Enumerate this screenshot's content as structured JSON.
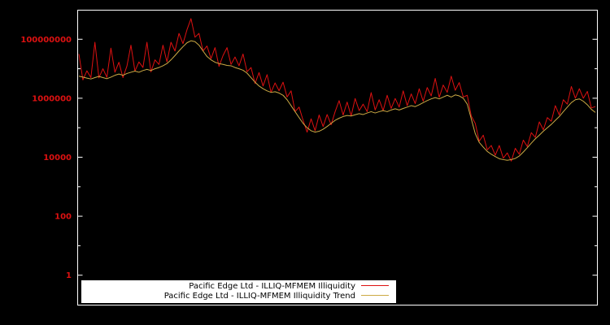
{
  "chart_data": {
    "type": "line",
    "title": "",
    "xlabel": "",
    "ylabel": "",
    "grid": false,
    "background": "#000000",
    "border_color": "#ffffff",
    "x_count": 130,
    "yaxis": {
      "scale": "log",
      "min": 0.1,
      "max": 1000000000.0,
      "ticks": [
        1,
        100,
        10000,
        1000000,
        100000000
      ],
      "tick_labels": [
        "1",
        "100",
        "10000",
        "1000000",
        "100000000"
      ],
      "minor_ticks": [
        10,
        1000,
        100000,
        10000000
      ],
      "tick_color": "#dd1111"
    },
    "legend": {
      "position": "bottom-center",
      "background": "#ffffff"
    },
    "series": [
      {
        "name": "Pacific Edge Ltd - ILLIQ-MFMEM Illiquidity",
        "color": "#dd1111",
        "values": [
          31600000.0,
          4200000.0,
          8500000.0,
          5000000.0,
          79000000.0,
          4900000.0,
          10000000.0,
          5100000.0,
          50000000.0,
          7600000.0,
          16600000.0,
          5000000.0,
          12300000.0,
          63000000.0,
          8300000.0,
          17000000.0,
          11000000.0,
          79000000.0,
          7800000.0,
          20000000.0,
          14000000.0,
          63000000.0,
          17000000.0,
          79000000.0,
          40000000.0,
          158000000.0,
          71000000.0,
          210000000.0,
          500000000.0,
          117000000.0,
          158000000.0,
          40000000.0,
          59000000.0,
          22000000.0,
          52000000.0,
          12000000.0,
          28000000.0,
          52000000.0,
          14000000.0,
          25000000.0,
          12600000.0,
          31600000.0,
          7900000.0,
          11000000.0,
          3160000.0,
          7400000.0,
          2600000.0,
          6300000.0,
          1580000.0,
          3300000.0,
          1800000.0,
          3500000.0,
          1100000.0,
          1780000.0,
          350000.0,
          500000.0,
          178000.0,
          71000.0,
          200000.0,
          79000.0,
          270000.0,
          110000.0,
          280000.0,
          126000.0,
          350000.0,
          830000.0,
          270000.0,
          740000.0,
          250000.0,
          980000.0,
          380000.0,
          630000.0,
          350000.0,
          1550000.0,
          400000.0,
          890000.0,
          380000.0,
          1260000.0,
          450000.0,
          980000.0,
          500000.0,
          1780000.0,
          560000.0,
          1400000.0,
          660000.0,
          2100000.0,
          790000.0,
          2300000.0,
          1200000.0,
          4700000.0,
          1070000.0,
          2800000.0,
          1580000.0,
          5600000.0,
          1860000.0,
          3400000.0,
          1100000.0,
          1260000.0,
          250000.0,
          140000.0,
          35000.0,
          56000.0,
          17800.0,
          25000.0,
          11700.0,
          25000.0,
          9300.0,
          14000.0,
          7400.0,
          20000.0,
          12600.0,
          38000.0,
          23000.0,
          68000.0,
          47000.0,
          158000.0,
          85000.0,
          220000.0,
          166000.0,
          560000.0,
          270000.0,
          890000.0,
          630000.0,
          2500000.0,
          1000000.0,
          2100000.0,
          1000000.0,
          1700000.0,
          470000.0,
          520000.0
        ]
      },
      {
        "name": "Pacific Edge Ltd - ILLIQ-MFMEM Illiquidity Trend",
        "color": "#ccaa44",
        "values": [
          5600000.0,
          5200000.0,
          4800000.0,
          4500000.0,
          5000000.0,
          5500000.0,
          5000000.0,
          4600000.0,
          5200000.0,
          6000000.0,
          6600000.0,
          6000000.0,
          6900000.0,
          7600000.0,
          8300000.0,
          7600000.0,
          8700000.0,
          9500000.0,
          8700000.0,
          10000000.0,
          11000000.0,
          12600000.0,
          15000000.0,
          20000000.0,
          28000000.0,
          40000000.0,
          56000000.0,
          76000000.0,
          89000000.0,
          83000000.0,
          63000000.0,
          40000000.0,
          26000000.0,
          20000000.0,
          16600000.0,
          15000000.0,
          14000000.0,
          13000000.0,
          12600000.0,
          11000000.0,
          10000000.0,
          8900000.0,
          7100000.0,
          5000000.0,
          3500000.0,
          2600000.0,
          2100000.0,
          1780000.0,
          1580000.0,
          1660000.0,
          1500000.0,
          1260000.0,
          890000.0,
          560000.0,
          350000.0,
          220000.0,
          140000.0,
          100000.0,
          79000.0,
          71000.0,
          76000.0,
          89000.0,
          110000.0,
          140000.0,
          178000.0,
          210000.0,
          240000.0,
          260000.0,
          250000.0,
          275000.0,
          300000.0,
          280000.0,
          316000.0,
          350000.0,
          316000.0,
          350000.0,
          380000.0,
          350000.0,
          400000.0,
          440000.0,
          400000.0,
          450000.0,
          500000.0,
          560000.0,
          520000.0,
          600000.0,
          710000.0,
          830000.0,
          950000.0,
          1050000.0,
          950000.0,
          1100000.0,
          1260000.0,
          1100000.0,
          1300000.0,
          1200000.0,
          1000000.0,
          630000.0,
          200000.0,
          63000.0,
          31600.0,
          22000.0,
          15800.0,
          12600.0,
          10500.0,
          8900.0,
          8300.0,
          7900.0,
          8300.0,
          9100.0,
          11000.0,
          15000.0,
          21000.0,
          30000.0,
          42000.0,
          56000.0,
          76000.0,
          100000.0,
          130000.0,
          178000.0,
          240000.0,
          350000.0,
          500000.0,
          710000.0,
          890000.0,
          950000.0,
          790000.0,
          600000.0,
          420000.0,
          330000.0
        ]
      }
    ]
  }
}
